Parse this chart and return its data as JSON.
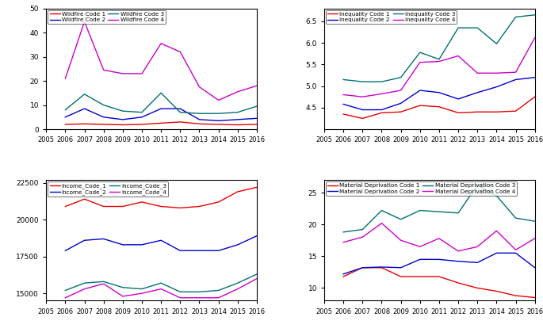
{
  "years": [
    2006,
    2007,
    2008,
    2009,
    2010,
    2011,
    2012,
    2013,
    2014,
    2015,
    2016
  ],
  "wildfire": {
    "code1": [
      2.0,
      2.2,
      2.0,
      1.8,
      2.0,
      2.5,
      3.0,
      2.2,
      2.0,
      1.8,
      2.0
    ],
    "code2": [
      5.0,
      8.5,
      5.0,
      4.0,
      5.0,
      8.5,
      8.5,
      4.0,
      3.5,
      4.0,
      4.5
    ],
    "code3": [
      8.0,
      14.5,
      10.0,
      7.5,
      7.0,
      15.0,
      7.0,
      6.5,
      6.5,
      7.0,
      9.5
    ],
    "code4": [
      21.0,
      44.5,
      24.5,
      23.0,
      23.0,
      35.5,
      32.0,
      17.5,
      12.0,
      15.5,
      18.0
    ],
    "ylim": [
      0,
      50
    ],
    "yticks": [
      0,
      10,
      20,
      30,
      40,
      50
    ]
  },
  "inequality": {
    "code1": [
      4.35,
      4.25,
      4.38,
      4.4,
      4.55,
      4.52,
      4.38,
      4.4,
      4.4,
      4.42,
      4.75
    ],
    "code2": [
      4.58,
      4.45,
      4.45,
      4.6,
      4.9,
      4.85,
      4.7,
      4.85,
      4.98,
      5.15,
      5.2
    ],
    "code3": [
      5.15,
      5.1,
      5.1,
      5.2,
      5.78,
      5.62,
      6.35,
      6.35,
      5.98,
      6.6,
      6.65
    ],
    "code4": [
      4.8,
      4.75,
      4.82,
      4.9,
      5.55,
      5.57,
      5.7,
      5.3,
      5.3,
      5.32,
      6.12
    ],
    "ylim": [
      4.0,
      6.8
    ],
    "yticks": [
      4.5,
      5.0,
      5.5,
      6.0,
      6.5
    ]
  },
  "income": {
    "code1": [
      20900,
      21400,
      20900,
      20900,
      21200,
      20900,
      20800,
      20900,
      21200,
      21900,
      22200
    ],
    "code2": [
      17900,
      18600,
      18700,
      18300,
      18300,
      18600,
      17900,
      17900,
      17900,
      18300,
      18900
    ],
    "code3": [
      15200,
      15700,
      15800,
      15400,
      15300,
      15700,
      15100,
      15100,
      15200,
      15700,
      16300
    ],
    "code4": [
      14700,
      15300,
      15650,
      14800,
      15000,
      15300,
      14700,
      14700,
      14700,
      15300,
      16000
    ],
    "ylim": [
      14500,
      22700
    ],
    "yticks": [
      15000,
      17500,
      20000,
      22500
    ]
  },
  "material": {
    "code1": [
      11.8,
      13.2,
      13.2,
      11.8,
      11.8,
      11.8,
      10.8,
      10.0,
      9.5,
      8.8,
      8.5
    ],
    "code2": [
      12.2,
      13.2,
      13.3,
      13.2,
      14.5,
      14.5,
      14.2,
      14.0,
      15.5,
      15.5,
      13.2
    ],
    "code3": [
      18.8,
      19.2,
      22.2,
      20.8,
      22.2,
      22.0,
      21.8,
      26.2,
      24.5,
      21.0,
      20.5
    ],
    "code4": [
      17.2,
      18.0,
      20.2,
      17.5,
      16.5,
      17.8,
      15.8,
      16.5,
      19.0,
      16.0,
      17.8
    ],
    "ylim": [
      8,
      27
    ],
    "yticks": [
      10,
      15,
      20,
      25
    ]
  },
  "colors": {
    "code1": "#e60000",
    "code2": "#0000cc",
    "code3": "#007070",
    "code4": "#cc00cc"
  },
  "xtick_labels": [
    "2006",
    "2007",
    "2008",
    "2009",
    "2010",
    "2011",
    "2012",
    "2013",
    "2014",
    "2015",
    "2016"
  ],
  "xlim": [
    2005,
    2016
  ],
  "xlim_left_label": "2005"
}
